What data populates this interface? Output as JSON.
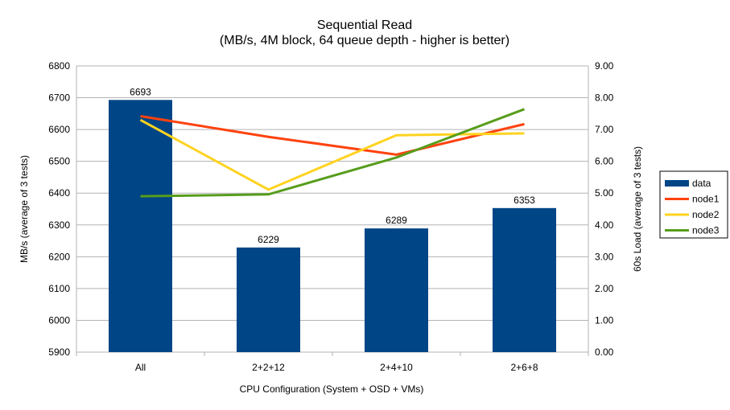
{
  "chart_data": {
    "type": "bar+line",
    "title": "Sequential Read",
    "subtitle": "(MB/s, 4M block, 64 queue depth - higher is better)",
    "xlabel": "CPU Configuration (System + OSD + VMs)",
    "ylabel": "MB/s (average of 3 tests)",
    "y2label": "60s Load (average of 3 tests)",
    "categories": [
      "All",
      "2+2+12",
      "2+4+10",
      "2+6+8"
    ],
    "ylim": [
      5900,
      6800
    ],
    "yticks": [
      "5900",
      "6000",
      "6100",
      "6200",
      "6300",
      "6400",
      "6500",
      "6600",
      "6700",
      "6800"
    ],
    "y2lim": [
      0,
      9
    ],
    "y2ticks": [
      "0.00",
      "1.00",
      "2.00",
      "3.00",
      "4.00",
      "5.00",
      "6.00",
      "7.00",
      "8.00",
      "9.00"
    ],
    "grid": true,
    "legend_position": "right",
    "series": [
      {
        "name": "data",
        "kind": "bar",
        "axis": "left",
        "color": "#004586",
        "values": [
          6693,
          6229,
          6289,
          6353
        ],
        "labels": [
          "6693",
          "6229",
          "6289",
          "6353"
        ]
      },
      {
        "name": "node1",
        "kind": "line",
        "axis": "right",
        "color": "#ff420e",
        "values": [
          7.42,
          6.77,
          6.21,
          7.17
        ]
      },
      {
        "name": "node2",
        "kind": "line",
        "axis": "right",
        "color": "#ffd320",
        "values": [
          7.3,
          5.11,
          6.82,
          6.88
        ]
      },
      {
        "name": "node3",
        "kind": "line",
        "axis": "right",
        "color": "#579d1c",
        "values": [
          4.9,
          4.96,
          6.12,
          7.64
        ]
      }
    ]
  }
}
